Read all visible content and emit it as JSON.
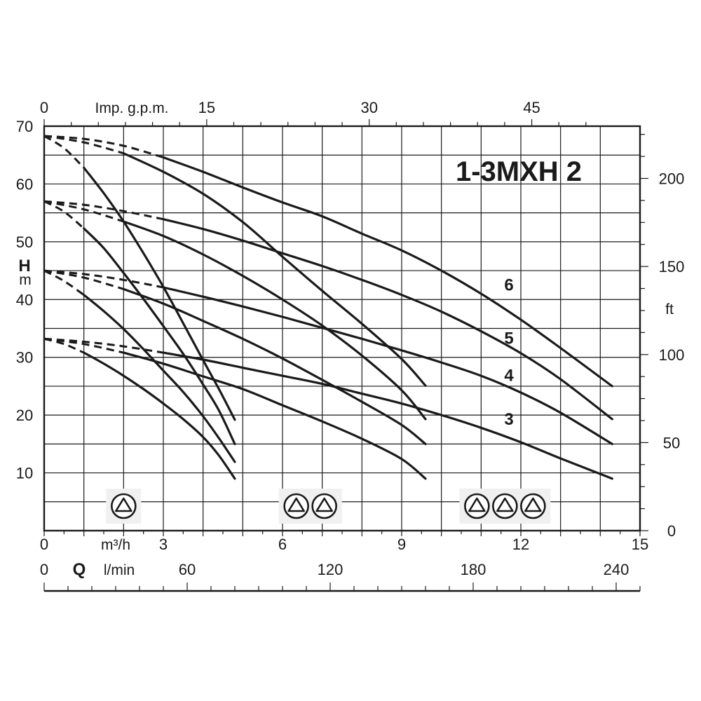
{
  "chart_data": {
    "type": "line",
    "title": "1-3MXH 2",
    "y_left": {
      "letter": "H",
      "unit": "m",
      "range": [
        0,
        70
      ],
      "ticks": [
        10,
        20,
        30,
        40,
        50,
        60,
        70
      ]
    },
    "y_right": {
      "unit": "ft",
      "ticks": [
        0,
        50,
        100,
        150,
        200
      ]
    },
    "x_top": {
      "unit": "Imp. g.p.m.",
      "ticks": [
        0,
        15,
        30,
        45
      ]
    },
    "x_m3h": {
      "unit": "m³/h",
      "range": [
        0,
        15
      ],
      "ticks": [
        0,
        3,
        6,
        9,
        12,
        15
      ]
    },
    "x_lmin": {
      "letter": "Q",
      "unit": "l/min",
      "ticks": [
        0,
        60,
        120,
        180,
        240
      ]
    },
    "grid": true,
    "curve_labels": [
      "6",
      "5",
      "4",
      "3"
    ],
    "series": [
      {
        "pump": "1MXH",
        "stages": "6",
        "x": [
          0,
          0.5,
          1,
          1.5,
          2,
          2.5,
          3,
          3.5,
          4,
          4.4,
          4.8
        ],
        "y": [
          68.3,
          66.2,
          62.8,
          58.4,
          53.5,
          48,
          42.2,
          35.9,
          29.5,
          24.5,
          19.2
        ]
      },
      {
        "pump": "1MXH",
        "stages": "5",
        "x": [
          0,
          0.5,
          1,
          1.5,
          2,
          2.5,
          3,
          3.5,
          4,
          4.4,
          4.8
        ],
        "y": [
          57,
          55.2,
          52.3,
          48.9,
          44.6,
          40.1,
          35.4,
          30.6,
          25.3,
          20.8,
          15
        ]
      },
      {
        "pump": "1MXH",
        "stages": "4",
        "x": [
          0,
          0.5,
          1,
          1.5,
          2,
          2.5,
          3,
          3.5,
          4,
          4.4,
          4.8
        ],
        "y": [
          45,
          43.2,
          40.8,
          38,
          34.9,
          31.4,
          27.7,
          24,
          19.8,
          16,
          11.9
        ]
      },
      {
        "pump": "1MXH",
        "stages": "3",
        "x": [
          0,
          0.5,
          1,
          1.5,
          2,
          2.5,
          3,
          3.5,
          4,
          4.4,
          4.8
        ],
        "y": [
          33.2,
          32.3,
          30.8,
          28.9,
          26.8,
          24.5,
          22,
          19.3,
          16.2,
          13,
          9
        ]
      },
      {
        "pump": "2MXH",
        "stages": "6",
        "x": [
          0,
          1,
          2,
          3,
          4,
          5,
          6,
          7,
          8,
          9,
          9.6
        ],
        "y": [
          68.3,
          67.2,
          65.3,
          62.1,
          58.3,
          53.4,
          47.4,
          41.5,
          35.8,
          29.7,
          25.1
        ]
      },
      {
        "pump": "2MXH",
        "stages": "5",
        "x": [
          0,
          1,
          2,
          3,
          4,
          5,
          6,
          7,
          8,
          9,
          9.6
        ],
        "y": [
          57,
          55.6,
          53.5,
          51,
          47.8,
          44.1,
          40,
          35.5,
          30.3,
          24.3,
          19.3
        ]
      },
      {
        "pump": "2MXH",
        "stages": "4",
        "x": [
          0,
          1,
          2,
          3,
          4,
          5,
          6,
          7,
          8,
          9,
          9.6
        ],
        "y": [
          45,
          43.8,
          41.8,
          39.3,
          36.3,
          33.2,
          29.8,
          26.1,
          22.3,
          18.3,
          15
        ]
      },
      {
        "pump": "2MXH",
        "stages": "3",
        "x": [
          0,
          1,
          2,
          3,
          4,
          5,
          6,
          7,
          8,
          9,
          9.6
        ],
        "y": [
          33.2,
          32.3,
          30.8,
          28.9,
          26.7,
          24.5,
          21.7,
          18.9,
          15.9,
          12.4,
          9
        ]
      },
      {
        "pump": "3MXH",
        "stages": "6",
        "x": [
          0,
          1,
          2,
          3,
          4,
          5,
          6,
          7,
          8,
          9,
          10,
          11,
          12,
          13,
          14.3
        ],
        "y": [
          68.3,
          67.8,
          66.6,
          64.6,
          62.1,
          59.4,
          56.8,
          54.4,
          51.4,
          48.5,
          45,
          41,
          36.5,
          31.6,
          25
        ]
      },
      {
        "pump": "3MXH",
        "stages": "5",
        "x": [
          0,
          1,
          2,
          3,
          4,
          5,
          6,
          7,
          8,
          9,
          10,
          11,
          12,
          13,
          14.3
        ],
        "y": [
          57,
          56.4,
          55.3,
          53.9,
          52.2,
          50.2,
          48,
          45.8,
          43.4,
          40.8,
          37.9,
          34.5,
          30.7,
          26.2,
          19.3
        ]
      },
      {
        "pump": "3MXH",
        "stages": "4",
        "x": [
          0,
          1,
          2,
          3,
          4,
          5,
          6,
          7,
          8,
          9,
          10,
          11,
          12,
          13,
          14.3
        ],
        "y": [
          45,
          44.4,
          43.4,
          42.1,
          40.5,
          38.8,
          37,
          35.1,
          33.2,
          31.2,
          29.1,
          26.8,
          23.9,
          20.4,
          15
        ]
      },
      {
        "pump": "3MXH",
        "stages": "3",
        "x": [
          0,
          1,
          2,
          3,
          4,
          5,
          6,
          7,
          8,
          9,
          10,
          11,
          12,
          13,
          14.3
        ],
        "y": [
          33.2,
          32.7,
          31.9,
          30.8,
          29.6,
          28.2,
          26.8,
          25.4,
          23.7,
          22,
          20,
          17.8,
          15.3,
          12.5,
          9
        ]
      }
    ],
    "pump_markers": [
      {
        "x": 2,
        "count": 1
      },
      {
        "x": 6.7,
        "count": 2
      },
      {
        "x": 11.6,
        "count": 3
      }
    ],
    "curve_label_positions": [
      {
        "text": "6",
        "x": 11.7,
        "y": 42.5
      },
      {
        "text": "5",
        "x": 11.7,
        "y": 33.3
      },
      {
        "text": "4",
        "x": 11.7,
        "y": 26.9
      },
      {
        "text": "3",
        "x": 11.7,
        "y": 19.3
      }
    ]
  }
}
